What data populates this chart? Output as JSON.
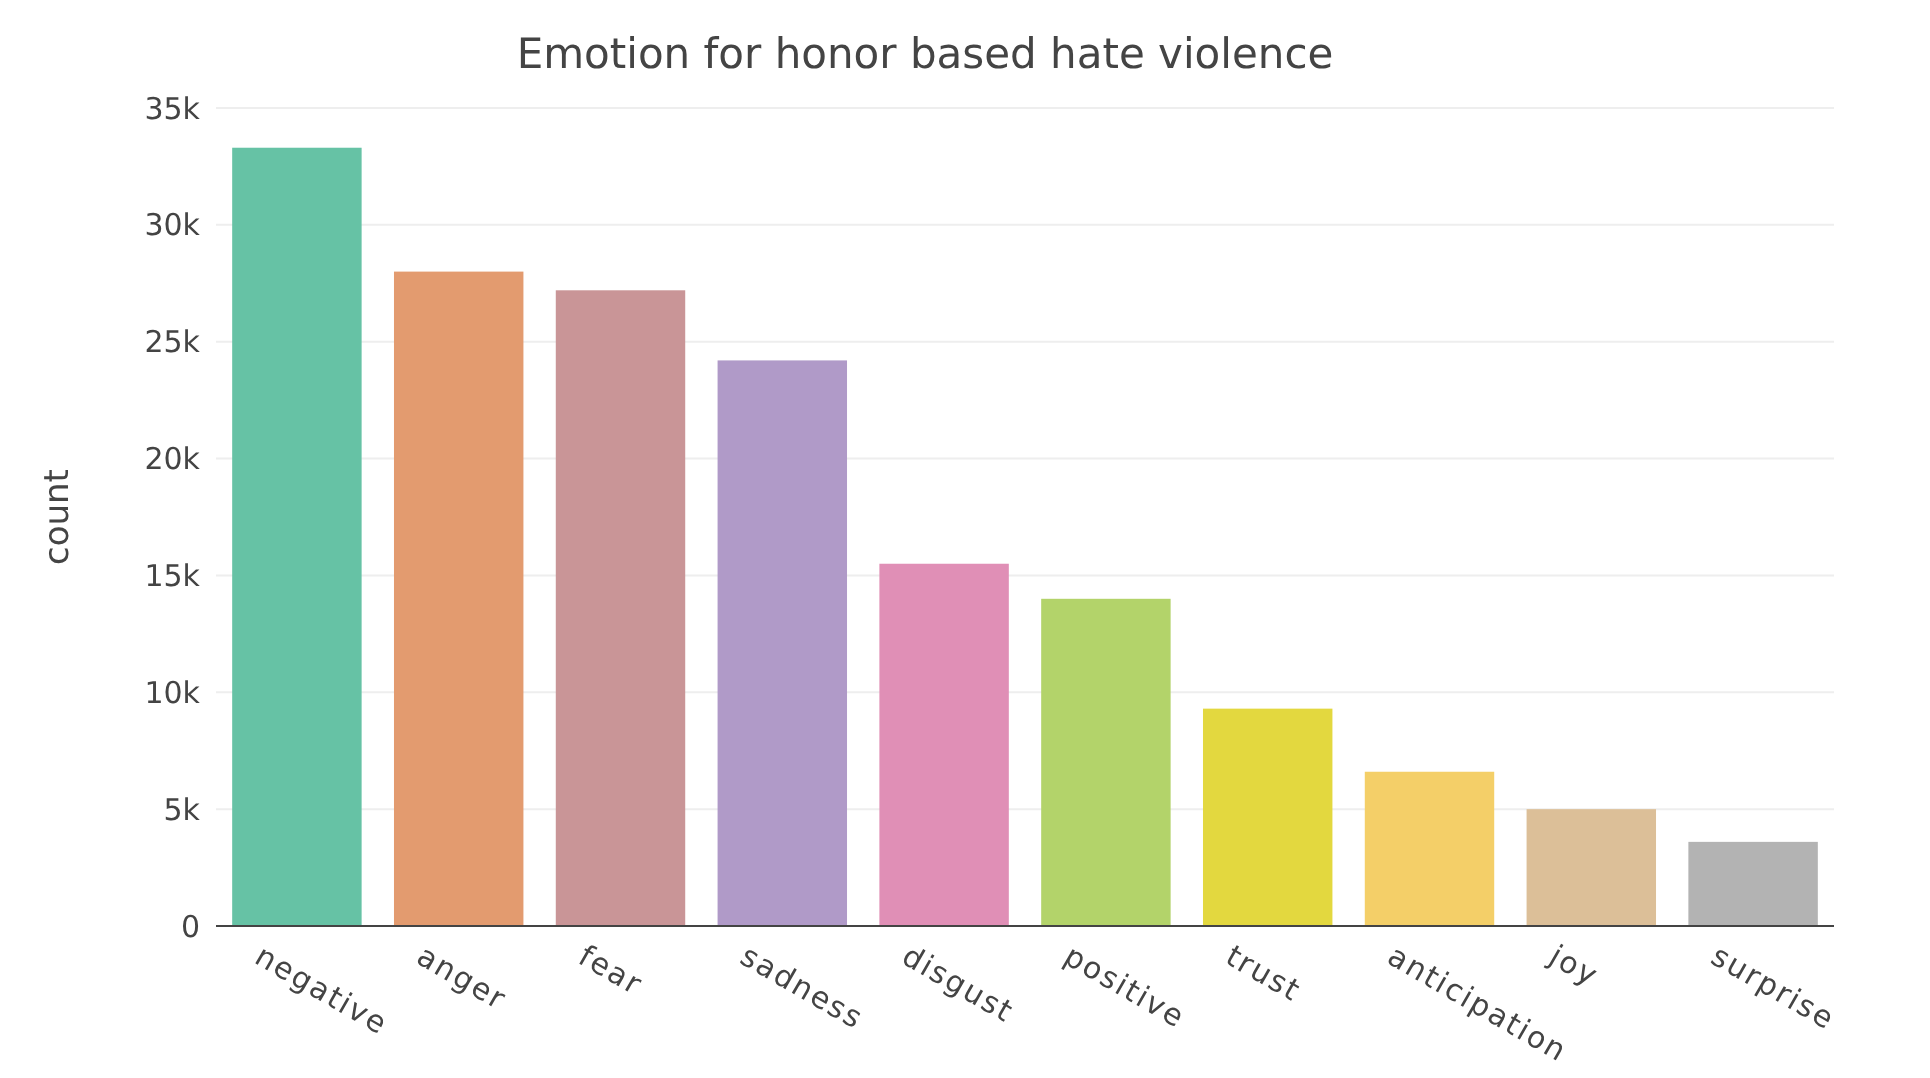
{
  "chart_data": {
    "type": "bar",
    "title": "Emotion for honor based hate violence",
    "ylabel": "count",
    "categories": [
      "negative",
      "anger",
      "fear",
      "sadness",
      "disgust",
      "positive",
      "trust",
      "anticipation",
      "joy",
      "surprise"
    ],
    "values": [
      33300,
      28000,
      27200,
      24200,
      15500,
      14000,
      9300,
      6600,
      5000,
      3600
    ],
    "colors": [
      "#66c2a5",
      "#e39b6f",
      "#c99597",
      "#b09ac8",
      "#e08fb6",
      "#b3d36a",
      "#e3d83f",
      "#f4cf68",
      "#dcbf98",
      "#b3b3b3"
    ],
    "ylim": [
      0,
      35000
    ],
    "yticks": [
      {
        "value": 0,
        "label": "0"
      },
      {
        "value": 5000,
        "label": "5k"
      },
      {
        "value": 10000,
        "label": "10k"
      },
      {
        "value": 15000,
        "label": "15k"
      },
      {
        "value": 20000,
        "label": "20k"
      },
      {
        "value": 25000,
        "label": "25k"
      },
      {
        "value": 30000,
        "label": "30k"
      },
      {
        "value": 35000,
        "label": "35k"
      }
    ],
    "grid": "y"
  }
}
